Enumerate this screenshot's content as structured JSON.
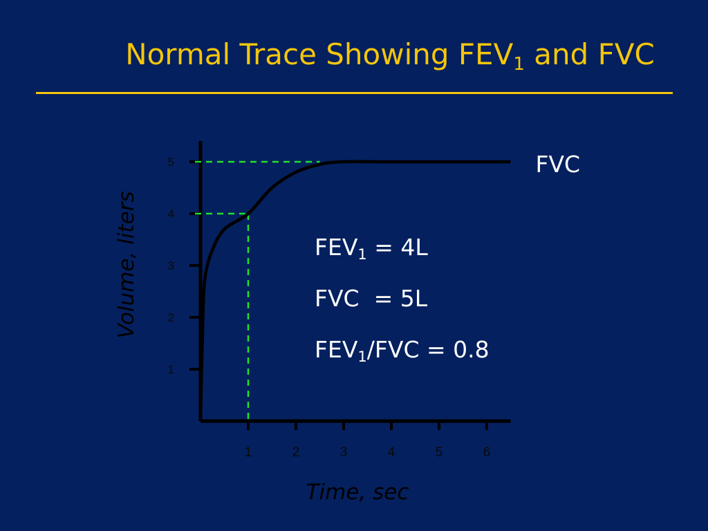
{
  "slide": {
    "title_main": "Normal Trace Showing FEV",
    "title_sub": "1",
    "title_tail": " and FVC"
  },
  "summary": [
    {
      "prefix": "FEV",
      "sub": "1",
      "suffix": " = 4L"
    },
    {
      "prefix": "FVC  = 5L",
      "sub": "",
      "suffix": ""
    },
    {
      "prefix": "FEV",
      "sub": "1",
      "suffix": "/FVC = 0.8"
    }
  ],
  "chart_data": {
    "type": "line",
    "xlabel": "Time, sec",
    "ylabel": "Volume, liters",
    "xlim": [
      0,
      6.5
    ],
    "ylim": [
      0,
      5.4
    ],
    "x_ticks": [
      1,
      2,
      3,
      4,
      5,
      6
    ],
    "y_ticks": [
      1,
      2,
      3,
      4,
      5
    ],
    "series": [
      {
        "name": "FVC",
        "x": [
          0,
          0.05,
          0.1,
          0.25,
          0.5,
          1.0,
          1.5,
          2.0,
          2.5,
          3.0,
          4.0,
          5.0,
          6.5
        ],
        "y": [
          0,
          2.0,
          2.8,
          3.3,
          3.7,
          4.0,
          4.5,
          4.8,
          4.95,
          5.0,
          5.0,
          5.0,
          5.0
        ]
      }
    ],
    "reference_lines": [
      {
        "label": "FEV1",
        "x": 1,
        "y": 4
      },
      {
        "label": "FVC",
        "x": null,
        "y": 5
      }
    ],
    "colors": {
      "curve": "#000000",
      "reference": "#22e02a",
      "background": "#04205e"
    }
  }
}
